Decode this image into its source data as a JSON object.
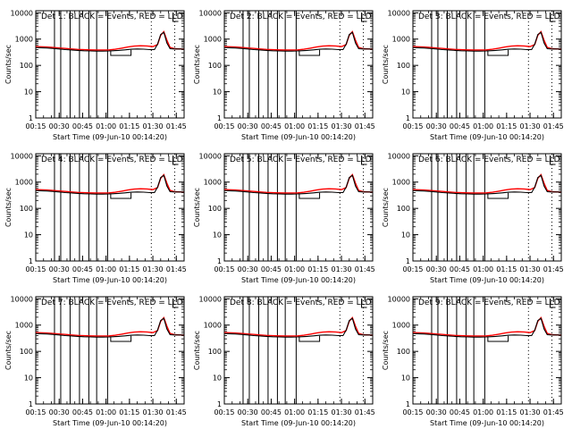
{
  "chart_data": [
    {
      "type": "line",
      "title": "Det 1: BLACK = Events, RED = LLD"
    },
    {
      "type": "line",
      "title": "Det 2: BLACK = Events, RED = LLD"
    },
    {
      "type": "line",
      "title": "Det 3: BLACK = Events, RED = LLD"
    },
    {
      "type": "line",
      "title": "Det 4: BLACK = Events, RED = LLD"
    },
    {
      "type": "line",
      "title": "Det 5: BLACK = Events, RED = LLD"
    },
    {
      "type": "line",
      "title": "Det 6: BLACK = Events, RED = LLD"
    },
    {
      "type": "line",
      "title": "Det 7: BLACK = Events, RED = LLD"
    },
    {
      "type": "line",
      "title": "Det 8: BLACK = Events, RED = LLD"
    },
    {
      "type": "line",
      "title": "Det 9: BLACK = Events, RED = LLD"
    }
  ],
  "shared": {
    "ylabel": "Counts/sec",
    "xlabel": "Start Time (09-Jun-10 00:14:20)",
    "yscale": "log",
    "ylim": [
      1,
      12000
    ],
    "yticks": [
      "1",
      "10",
      "100",
      "1000",
      "10000"
    ],
    "xlim_minutes": [
      15,
      110
    ],
    "xticks": [
      "00:15",
      "00:30",
      "00:45",
      "01:00",
      "01:15",
      "01:30",
      "01:45"
    ],
    "events_color": "#000000",
    "lld_color": "#ff0000",
    "events_series": [
      [
        15,
        480
      ],
      [
        18,
        470
      ],
      [
        22,
        460
      ],
      [
        26,
        440
      ],
      [
        30,
        420
      ],
      [
        34,
        400
      ],
      [
        38,
        385
      ],
      [
        42,
        370
      ],
      [
        46,
        360
      ],
      [
        50,
        355
      ],
      [
        54,
        350
      ],
      [
        58,
        350
      ],
      [
        62,
        355
      ],
      [
        64,
        360
      ],
      [
        68,
        370
      ],
      [
        72,
        390
      ],
      [
        76,
        410
      ],
      [
        80,
        420
      ],
      [
        84,
        415
      ],
      [
        88,
        400
      ],
      [
        91,
        400
      ],
      [
        93,
        640
      ],
      [
        95,
        1500
      ],
      [
        97,
        1800
      ],
      [
        99,
        700
      ],
      [
        101,
        430
      ],
      [
        104,
        420
      ],
      [
        108,
        420
      ],
      [
        110,
        420
      ]
    ],
    "lld_series": [
      [
        15,
        520
      ],
      [
        18,
        510
      ],
      [
        22,
        500
      ],
      [
        26,
        480
      ],
      [
        30,
        460
      ],
      [
        34,
        440
      ],
      [
        38,
        420
      ],
      [
        42,
        405
      ],
      [
        46,
        395
      ],
      [
        50,
        390
      ],
      [
        54,
        385
      ],
      [
        58,
        385
      ],
      [
        62,
        390
      ],
      [
        66,
        410
      ],
      [
        70,
        450
      ],
      [
        74,
        500
      ],
      [
        78,
        540
      ],
      [
        82,
        560
      ],
      [
        86,
        550
      ],
      [
        90,
        520
      ],
      [
        93,
        620
      ],
      [
        95,
        1400
      ],
      [
        97,
        1900
      ],
      [
        99,
        900
      ],
      [
        101,
        480
      ],
      [
        104,
        430
      ],
      [
        108,
        420
      ],
      [
        110,
        420
      ]
    ]
  }
}
